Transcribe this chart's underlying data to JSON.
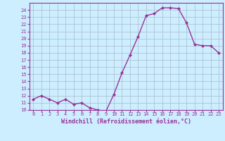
{
  "x": [
    0,
    1,
    2,
    3,
    4,
    5,
    6,
    7,
    8,
    9,
    10,
    11,
    12,
    13,
    14,
    15,
    16,
    17,
    18,
    19,
    20,
    21,
    22,
    23
  ],
  "y": [
    11.5,
    12.0,
    11.5,
    11.0,
    11.5,
    10.8,
    11.0,
    10.3,
    10.0,
    9.8,
    12.2,
    15.2,
    17.7,
    20.3,
    23.2,
    23.5,
    24.3,
    24.3,
    24.2,
    22.2,
    19.2,
    19.0,
    19.0,
    18.0
  ],
  "line_color": "#993399",
  "marker": "D",
  "markersize": 2.0,
  "bg_color": "#cceeff",
  "grid_color": "#aabbcc",
  "xlabel": "Windchill (Refroidissement éolien,°C)",
  "ylim": [
    10,
    25
  ],
  "xlim": [
    -0.5,
    23.5
  ],
  "yticks": [
    10,
    11,
    12,
    13,
    14,
    15,
    16,
    17,
    18,
    19,
    20,
    21,
    22,
    23,
    24
  ],
  "xticks": [
    0,
    1,
    2,
    3,
    4,
    5,
    6,
    7,
    8,
    9,
    10,
    11,
    12,
    13,
    14,
    15,
    16,
    17,
    18,
    19,
    20,
    21,
    22,
    23
  ],
  "tick_color": "#993399",
  "label_color": "#993399",
  "linewidth": 1.0,
  "tick_fontsize": 5.0,
  "xlabel_fontsize": 6.0
}
